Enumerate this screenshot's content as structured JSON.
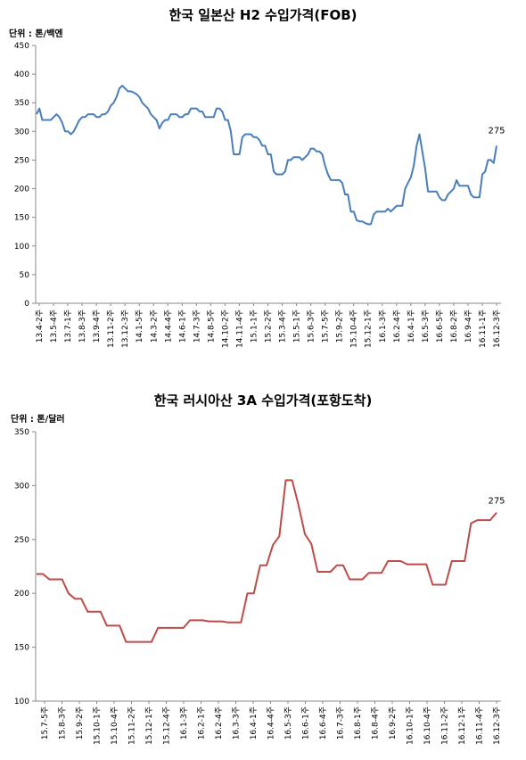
{
  "chart_data": [
    {
      "type": "line",
      "title": "한국 일본산 H2 수입가격(FOB)",
      "unit_label": "단위 : 톤/백엔",
      "ylim": [
        0,
        450
      ],
      "yticks": [
        0,
        50,
        100,
        150,
        200,
        250,
        300,
        350,
        400,
        450
      ],
      "grid": false,
      "line_color": "#4a7ebb",
      "x_tick_labels": [
        "13.4-2주",
        "13.5-4주",
        "13.7-1주",
        "13.8-3주",
        "13.9-4주",
        "13.11-2주",
        "13.12-3주",
        "14.1-5주",
        "14.3-2주",
        "14.4-4주",
        "14.6-1주",
        "14.7-3주",
        "14.8-5주",
        "14.10-2주",
        "14.11-4주",
        "15.1-1주",
        "15.2-2주",
        "15.3-4주",
        "15.5-1주",
        "15.6-3주",
        "15.7-5주",
        "15.9-2주",
        "15.10-4주",
        "15.12-1주",
        "16.1-3주",
        "16.2-4주",
        "16.4-1주",
        "16.5-3주",
        "16.6-5주",
        "16.8-2주",
        "16.9-4주",
        "16.11-1주",
        "16.12-3주"
      ],
      "series": [
        {
          "values": [
            330,
            340,
            320,
            320,
            320,
            320,
            325,
            330,
            325,
            315,
            300,
            300,
            295,
            300,
            310,
            320,
            325,
            325,
            330,
            330,
            330,
            325,
            325,
            330,
            330,
            335,
            345,
            350,
            360,
            375,
            380,
            375,
            370,
            370,
            368,
            365,
            360,
            350,
            345,
            340,
            330,
            325,
            320,
            305,
            315,
            320,
            320,
            330,
            330,
            330,
            325,
            325,
            330,
            330,
            340,
            340,
            340,
            335,
            335,
            325,
            325,
            325,
            325,
            340,
            340,
            335,
            320,
            320,
            300,
            260,
            260,
            260,
            290,
            295,
            295,
            295,
            290,
            290,
            285,
            275,
            275,
            260,
            260,
            230,
            225,
            225,
            225,
            230,
            250,
            250,
            255,
            255,
            255,
            250,
            255,
            260,
            270,
            270,
            265,
            265,
            260,
            240,
            225,
            215,
            215,
            215,
            215,
            210,
            190,
            190,
            160,
            160,
            145,
            143,
            143,
            140,
            138,
            138,
            155,
            160,
            160,
            160,
            160,
            165,
            160,
            165,
            170,
            170,
            170,
            200,
            210,
            220,
            240,
            275,
            295,
            265,
            235,
            195,
            195,
            195,
            195,
            185,
            180,
            180,
            190,
            195,
            200,
            215,
            205,
            205,
            205,
            205,
            190,
            185,
            185,
            185,
            225,
            230,
            250,
            250,
            245,
            275
          ]
        }
      ],
      "data_label": "275"
    },
    {
      "type": "line",
      "title": "한국 러시아산 3A 수입가격(포항도착)",
      "unit_label": "단위 : 톤/달러",
      "ylim": [
        100,
        350
      ],
      "yticks": [
        100,
        150,
        200,
        250,
        300,
        350
      ],
      "grid": false,
      "line_color": "#be4b48",
      "x_tick_labels": [
        "15.7-5주",
        "15.8-3주",
        "15.9-2주",
        "15.10-1주",
        "15.10-4주",
        "15.11-2주",
        "15.12-1주",
        "15.12-4주",
        "16.1-3주",
        "16.2-1주",
        "16.2-4주",
        "16.3-3주",
        "16.4-1주",
        "16.4-4주",
        "16.5-3주",
        "16.6-1주",
        "16.6-4주",
        "16.7-3주",
        "16.8-1주",
        "16.8-4주",
        "16.9-2주",
        "16.10-1주",
        "16.10-4주",
        "16.11-2주",
        "16.12-1주"
      ],
      "extra_tick_labels": [
        "16.11-4주",
        "16.12-3주"
      ],
      "series": [
        {
          "values": [
            218,
            218,
            213,
            213,
            213,
            200,
            195,
            195,
            183,
            183,
            183,
            170,
            170,
            170,
            155,
            155,
            155,
            155,
            155,
            168,
            168,
            168,
            168,
            168,
            175,
            175,
            175,
            174,
            174,
            174,
            173,
            173,
            173,
            200,
            200,
            226,
            226,
            245,
            253,
            305,
            305,
            282,
            255,
            246,
            220,
            220,
            220,
            226,
            226,
            213,
            213,
            213,
            219,
            219,
            219,
            230,
            230,
            230,
            227,
            227,
            227,
            227,
            208,
            208,
            208,
            230,
            230,
            230,
            265,
            268,
            268,
            268,
            275
          ]
        }
      ],
      "data_label": "275"
    }
  ]
}
